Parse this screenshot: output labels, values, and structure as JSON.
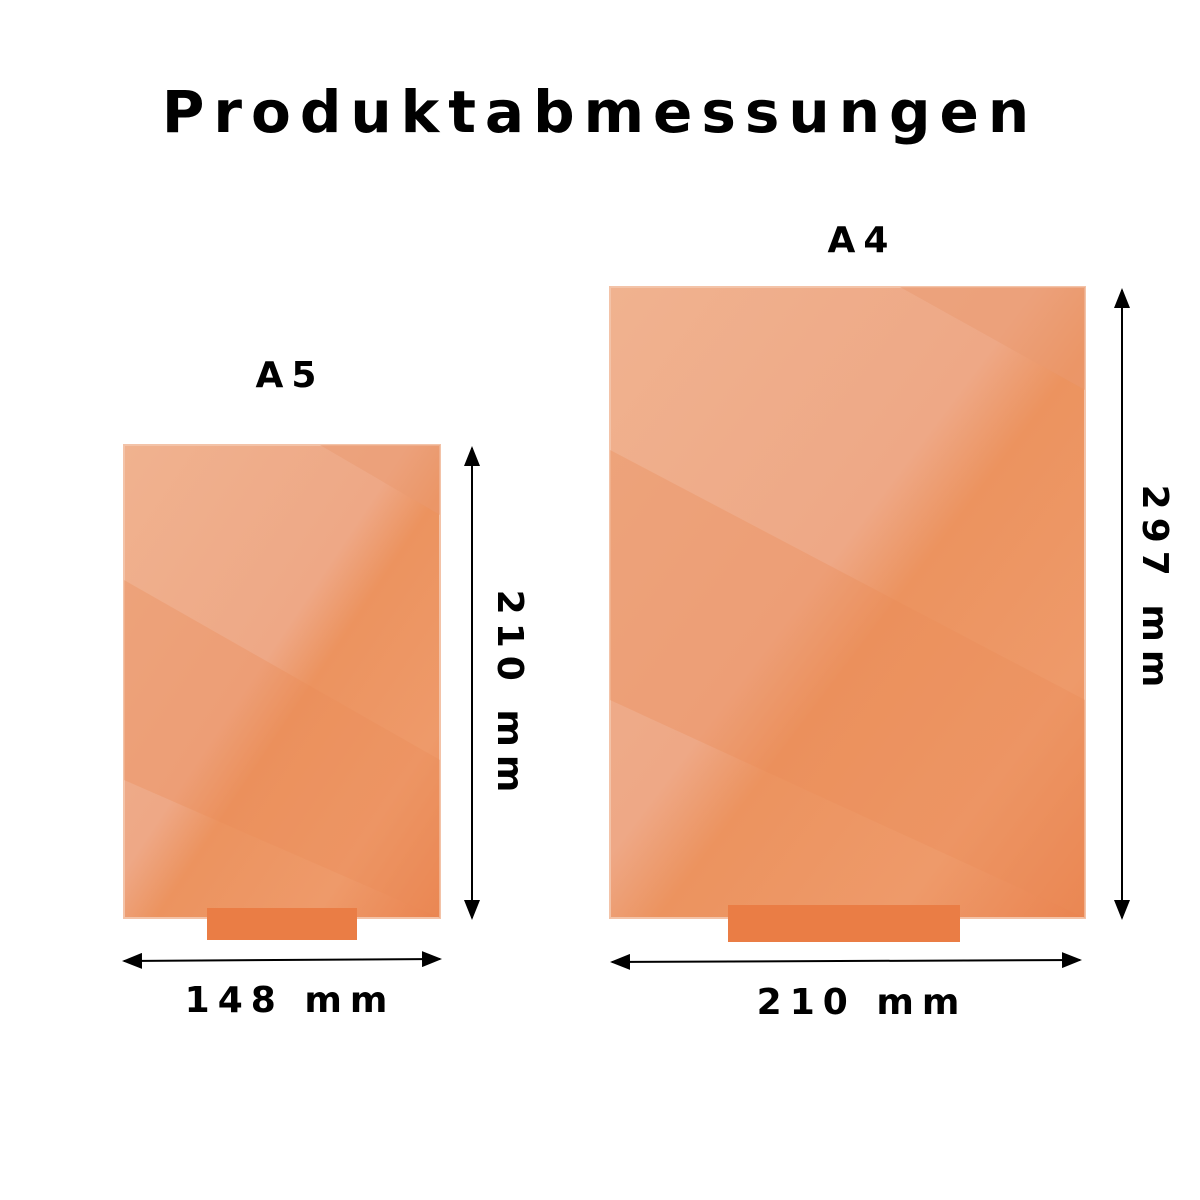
{
  "title": "Produktabmessungen",
  "colors": {
    "panel_light": "#efae8a",
    "panel_dark": "#ec8a55",
    "foot": "#ea7a40",
    "text": "#000000"
  },
  "products": [
    {
      "name": "A5",
      "width": "148 mm",
      "height": "210 mm"
    },
    {
      "name": "A4",
      "width": "210 mm",
      "height": "297 mm"
    }
  ]
}
